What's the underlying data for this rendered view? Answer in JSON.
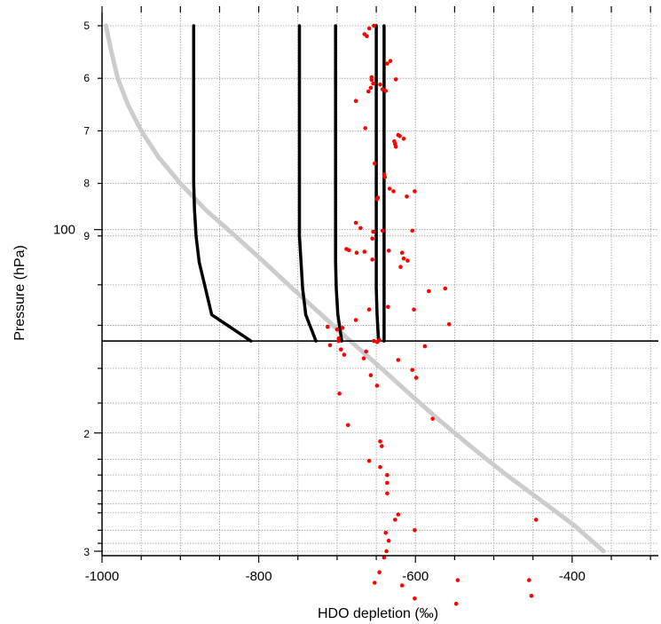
{
  "chart_data": {
    "type": "line",
    "xlabel": "HDO depletion (‰)",
    "ylabel": "Pressure (hPa)",
    "xlim": [
      -1000,
      -290
    ],
    "y_axis_major_labels": [
      "100",
      "2",
      "3"
    ],
    "y_axis_minor_labels": [
      "5",
      "6",
      "7",
      "8",
      "9"
    ],
    "x_ticks": [
      -1000,
      -800,
      -600,
      -400
    ],
    "x_tick_labels": [
      "-1000",
      "-800",
      "-600",
      "-400"
    ],
    "grid": true,
    "legend": "none",
    "note": "The y axis is a logarithmic pressure axis; its printed labels 5–9 then 100 then 2, 3 are reproduced exactly as shown. Curve y values are expressed as positions along that printed axis.",
    "colors": {
      "black_curves": "#000000",
      "gray_curve": "#cccccc",
      "scatter_points": "#ff0000",
      "grid": "#999999"
    },
    "reference_line_y": 0.6,
    "gray_curve": {
      "name": "",
      "points": [
        [
          -995,
          0.0
        ],
        [
          -988,
          0.05
        ],
        [
          -980,
          0.1
        ],
        [
          -967,
          0.15
        ],
        [
          -950,
          0.2
        ],
        [
          -928,
          0.25
        ],
        [
          -900,
          0.3
        ],
        [
          -868,
          0.35
        ],
        [
          -830,
          0.4
        ],
        [
          -793,
          0.45
        ],
        [
          -757,
          0.5
        ],
        [
          -720,
          0.55
        ],
        [
          -683,
          0.6
        ],
        [
          -645,
          0.65
        ],
        [
          -608,
          0.7
        ],
        [
          -570,
          0.75
        ],
        [
          -530,
          0.8
        ],
        [
          -488,
          0.85
        ],
        [
          -443,
          0.9
        ],
        [
          -398,
          0.95
        ],
        [
          -360,
          1.0
        ]
      ]
    },
    "black_curves": [
      {
        "name": "",
        "points": [
          [
            -883,
            0.0
          ],
          [
            -883,
            0.1
          ],
          [
            -883,
            0.2
          ],
          [
            -883,
            0.3
          ],
          [
            -882,
            0.35
          ],
          [
            -880,
            0.4
          ],
          [
            -876,
            0.45
          ],
          [
            -868,
            0.5
          ],
          [
            -860,
            0.55
          ],
          [
            -810,
            0.6
          ]
        ]
      },
      {
        "name": "",
        "points": [
          [
            -748,
            0.0
          ],
          [
            -748,
            0.1
          ],
          [
            -748,
            0.2
          ],
          [
            -748,
            0.3
          ],
          [
            -748,
            0.35
          ],
          [
            -748,
            0.4
          ],
          [
            -746,
            0.45
          ],
          [
            -744,
            0.5
          ],
          [
            -740,
            0.55
          ],
          [
            -727,
            0.6
          ]
        ]
      },
      {
        "name": "",
        "points": [
          [
            -702,
            0.0
          ],
          [
            -702,
            0.1
          ],
          [
            -702,
            0.2
          ],
          [
            -702,
            0.3
          ],
          [
            -702,
            0.35
          ],
          [
            -702,
            0.4
          ],
          [
            -702,
            0.45
          ],
          [
            -701,
            0.5
          ],
          [
            -699,
            0.55
          ],
          [
            -694,
            0.6
          ]
        ]
      },
      {
        "name": "",
        "points": [
          [
            -650,
            0.0
          ],
          [
            -650,
            0.1
          ],
          [
            -650,
            0.2
          ],
          [
            -650,
            0.3
          ],
          [
            -650,
            0.4
          ],
          [
            -650,
            0.5
          ],
          [
            -649,
            0.55
          ],
          [
            -647,
            0.6
          ]
        ]
      },
      {
        "name": "",
        "points": [
          [
            -640,
            0.0
          ],
          [
            -640,
            0.1
          ],
          [
            -640,
            0.2
          ],
          [
            -640,
            0.3
          ],
          [
            -640,
            0.4
          ],
          [
            -640,
            0.5
          ],
          [
            -640,
            0.55
          ],
          [
            -640,
            0.6
          ]
        ]
      }
    ],
    "scatter": {
      "name": "",
      "points": [
        [
          -653,
          0.0
        ],
        [
          -665,
          0.016
        ],
        [
          -662,
          0.02
        ],
        [
          -659,
          0.005
        ],
        [
          -636,
          0.072
        ],
        [
          -632,
          0.067
        ],
        [
          -656,
          0.098
        ],
        [
          -656,
          0.103
        ],
        [
          -654,
          0.11
        ],
        [
          -657,
          0.118
        ],
        [
          -660,
          0.125
        ],
        [
          -645,
          0.112
        ],
        [
          -642,
          0.121
        ],
        [
          -625,
          0.102
        ],
        [
          -676,
          0.143
        ],
        [
          -638,
          0.124
        ],
        [
          -664,
          0.195
        ],
        [
          -622,
          0.208
        ],
        [
          -620,
          0.21
        ],
        [
          -615,
          0.215
        ],
        [
          -627,
          0.22
        ],
        [
          -626,
          0.225
        ],
        [
          -625,
          0.23
        ],
        [
          -652,
          0.262
        ],
        [
          -640,
          0.283
        ],
        [
          -639,
          0.288
        ],
        [
          -633,
          0.31
        ],
        [
          -628,
          0.315
        ],
        [
          -611,
          0.325
        ],
        [
          -648,
          0.327
        ],
        [
          -601,
          0.315
        ],
        [
          -649,
          0.33
        ],
        [
          -676,
          0.375
        ],
        [
          -670,
          0.385
        ],
        [
          -654,
          0.392
        ],
        [
          -642,
          0.39
        ],
        [
          -655,
          0.405
        ],
        [
          -604,
          0.39
        ],
        [
          -688,
          0.425
        ],
        [
          -685,
          0.427
        ],
        [
          -675,
          0.432
        ],
        [
          -665,
          0.43
        ],
        [
          -655,
          0.445
        ],
        [
          -634,
          0.428
        ],
        [
          -617,
          0.432
        ],
        [
          -615,
          0.443
        ],
        [
          -610,
          0.447
        ],
        [
          -619,
          0.459
        ],
        [
          -583,
          0.505
        ],
        [
          -635,
          0.535
        ],
        [
          -659,
          0.54
        ],
        [
          -676,
          0.56
        ],
        [
          -700,
          0.578
        ],
        [
          -693,
          0.575
        ],
        [
          -712,
          0.573
        ],
        [
          -698,
          0.595
        ],
        [
          -698,
          0.6
        ],
        [
          -653,
          0.6
        ],
        [
          -649,
          0.602
        ],
        [
          -646,
          0.598
        ],
        [
          -602,
          0.54
        ],
        [
          -562,
          0.5
        ],
        [
          -557,
          0.568
        ],
        [
          -691,
          0.626
        ],
        [
          -709,
          0.608
        ],
        [
          -695,
          0.616
        ],
        [
          -622,
          0.636
        ],
        [
          -663,
          0.62
        ],
        [
          -666,
          0.633
        ],
        [
          -588,
          0.61
        ],
        [
          -604,
          0.655
        ],
        [
          -599,
          0.67
        ],
        [
          -657,
          0.665
        ],
        [
          -649,
          0.685
        ],
        [
          -697,
          0.7
        ],
        [
          -578,
          0.748
        ],
        [
          -686,
          0.76
        ],
        [
          -645,
          0.791
        ],
        [
          -643,
          0.8
        ],
        [
          -659,
          0.828
        ],
        [
          -645,
          0.84
        ],
        [
          -636,
          0.855
        ],
        [
          -636,
          0.87
        ],
        [
          -636,
          0.89
        ],
        [
          -626,
          0.94
        ],
        [
          -622,
          0.93
        ],
        [
          -601,
          0.96
        ],
        [
          -638,
          0.965
        ],
        [
          -634,
          0.98
        ],
        [
          -446,
          0.94
        ],
        [
          -640,
          1.012
        ],
        [
          -637,
          1.0
        ],
        [
          -646,
          1.04
        ],
        [
          -652,
          1.06
        ],
        [
          -617,
          1.065
        ],
        [
          -546,
          1.055
        ],
        [
          -455,
          1.055
        ],
        [
          -548,
          1.1
        ],
        [
          -601,
          1.09
        ],
        [
          -452,
          1.085
        ]
      ]
    }
  }
}
